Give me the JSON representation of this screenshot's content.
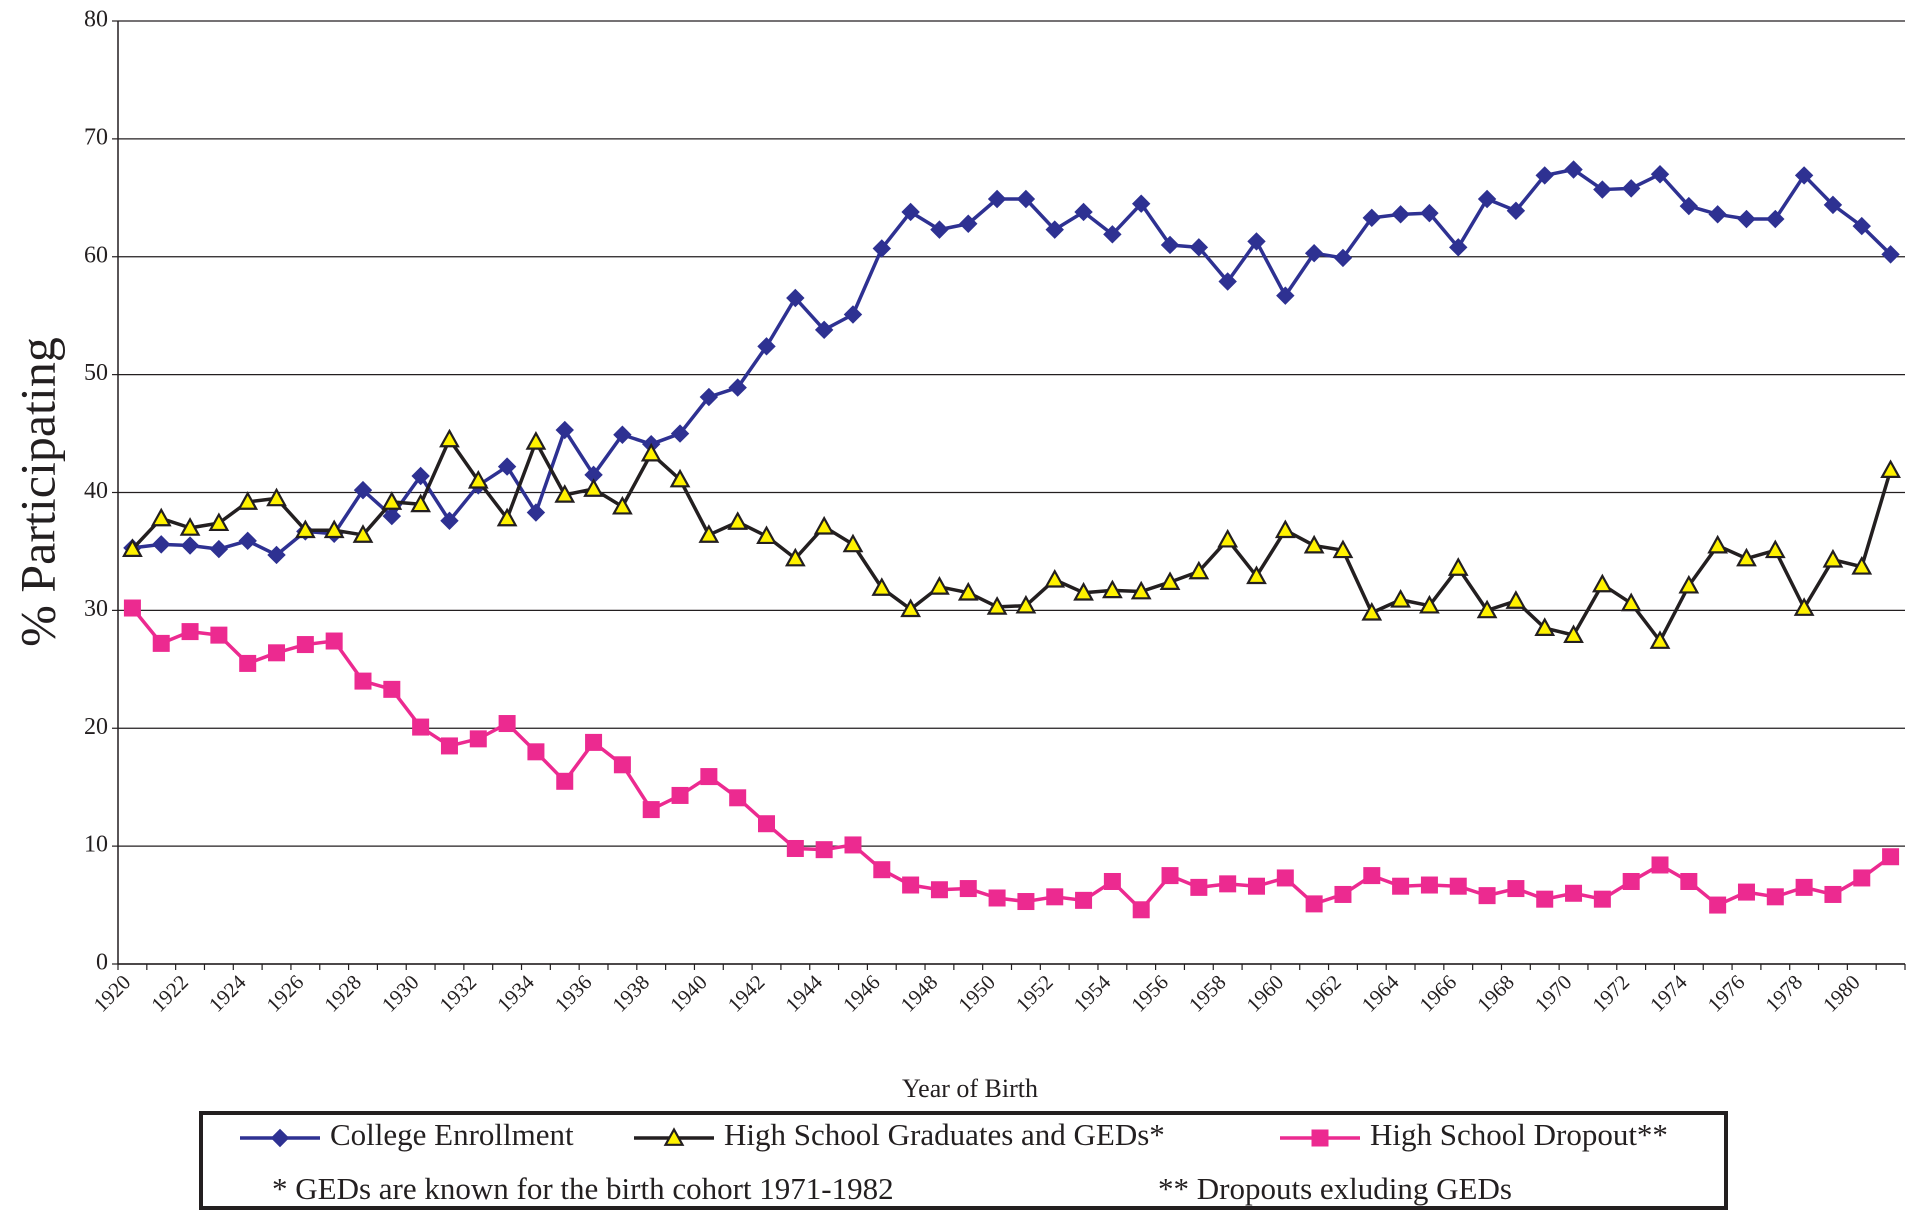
{
  "chart_data": {
    "type": "line",
    "y_label": "% Participating",
    "x_label": "Year of Birth",
    "categories": [
      "1920",
      null,
      "1922",
      null,
      "1924",
      null,
      "1926",
      null,
      "1928",
      null,
      "1930",
      null,
      "1932",
      null,
      "1934",
      null,
      "1936",
      null,
      "1938",
      null,
      "1940",
      null,
      "1942",
      null,
      "1944",
      null,
      "1946",
      null,
      "1948",
      null,
      "1950",
      null,
      "1952",
      null,
      "1954",
      null,
      "1956",
      null,
      "1958",
      null,
      "1960",
      null,
      "1962",
      null,
      "1964",
      null,
      "1966",
      null,
      "1968",
      null,
      "1970",
      null,
      "1972",
      null,
      "1974",
      null,
      "1976",
      null,
      "1978",
      null,
      "1980",
      null
    ],
    "series": [
      {
        "name": "College Enrollment",
        "color": "#2e3192",
        "marker": "diamond",
        "values": [
          35.3,
          35.6,
          35.5,
          35.2,
          35.9,
          34.7,
          36.7,
          36.5,
          40.2,
          38.0,
          41.4,
          37.6,
          40.6,
          42.2,
          38.3,
          45.3,
          41.5,
          44.9,
          44.1,
          45.0,
          48.1,
          48.9,
          52.4,
          56.5,
          53.8,
          55.1,
          60.7,
          63.8,
          62.3,
          62.8,
          64.9,
          64.9,
          62.3,
          63.8,
          61.9,
          64.5,
          61.0,
          60.8,
          57.9,
          61.3,
          56.7,
          60.3,
          59.9,
          63.3,
          63.6,
          63.7,
          60.8,
          64.9,
          63.9,
          66.9,
          67.4,
          65.7,
          65.8,
          67.0,
          64.3,
          63.6,
          63.2,
          63.2,
          66.9,
          64.4,
          62.6,
          60.2
        ]
      },
      {
        "name": "High School Graduates and GEDs*",
        "color": "#231f20",
        "marker": "triangle",
        "values": [
          35.2,
          37.8,
          37.0,
          37.4,
          39.2,
          39.5,
          36.8,
          36.8,
          36.4,
          39.2,
          39.0,
          44.5,
          41.0,
          37.8,
          44.3,
          39.8,
          40.3,
          38.8,
          43.3,
          41.1,
          36.4,
          37.5,
          36.3,
          34.4,
          37.1,
          35.6,
          31.9,
          30.1,
          32.0,
          31.5,
          30.3,
          30.4,
          32.6,
          31.5,
          31.7,
          31.6,
          32.4,
          33.3,
          36.0,
          32.9,
          36.8,
          35.5,
          35.1,
          29.8,
          30.9,
          30.4,
          33.6,
          30.0,
          30.8,
          28.5,
          27.9,
          32.2,
          30.6,
          27.4,
          32.1,
          35.5,
          34.4,
          35.1,
          30.2,
          34.3,
          33.7,
          41.9
        ]
      },
      {
        "name": "High School Dropout**",
        "color": "#ec2a90",
        "marker": "square",
        "values": [
          30.2,
          27.2,
          28.2,
          27.9,
          25.5,
          26.4,
          27.1,
          27.4,
          24.0,
          23.3,
          20.1,
          18.5,
          19.1,
          20.4,
          18.0,
          15.5,
          18.8,
          16.9,
          13.1,
          14.3,
          15.9,
          14.1,
          11.9,
          9.8,
          9.7,
          10.1,
          8.0,
          6.7,
          6.3,
          6.4,
          5.6,
          5.3,
          5.7,
          5.4,
          7.0,
          4.6,
          7.5,
          6.5,
          6.8,
          6.6,
          7.3,
          5.1,
          5.9,
          7.5,
          6.6,
          6.7,
          6.6,
          5.8,
          6.4,
          5.5,
          6.0,
          5.5,
          7.0,
          8.4,
          7.0,
          5.0,
          6.1,
          5.7,
          6.5,
          5.9,
          7.3,
          9.1
        ]
      }
    ],
    "notes": [
      "* GEDs are known for the birth cohort 1971-1982",
      "** Dropouts exluding GEDs"
    ],
    "ylim": [
      0,
      80
    ],
    "yticks": [
      0,
      10,
      20,
      30,
      40,
      50,
      60,
      70,
      80
    ],
    "grid": true
  }
}
